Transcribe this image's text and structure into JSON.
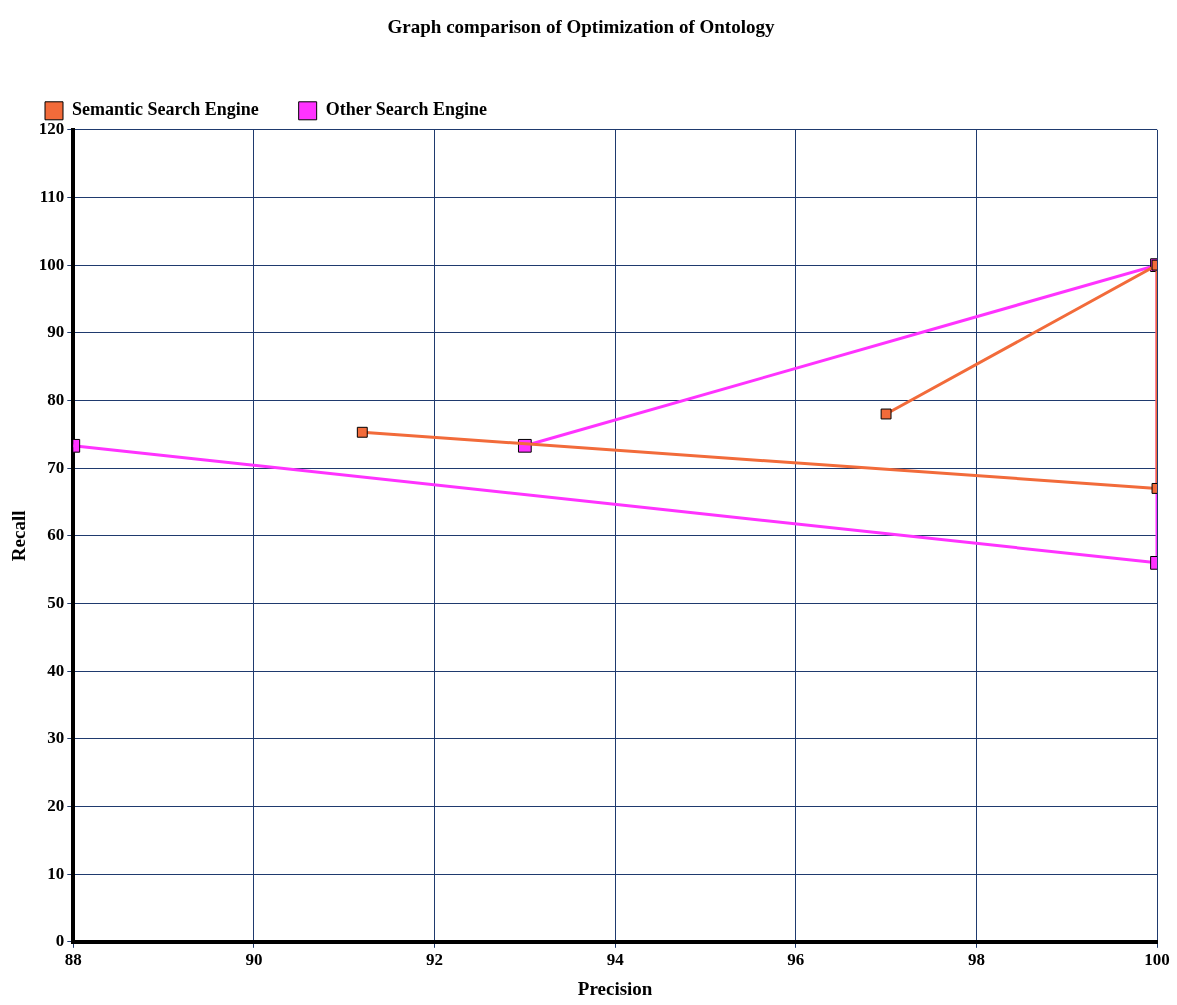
{
  "chart_data": {
    "type": "line",
    "title": "Graph comparison of Optimization of Ontology",
    "xlabel": "Precision",
    "ylabel": "Recall",
    "xlim": [
      88,
      100
    ],
    "xticks": [
      88,
      90,
      92,
      94,
      96,
      98,
      100
    ],
    "ylim": [
      0,
      120
    ],
    "yticks": [
      0,
      10,
      20,
      30,
      40,
      50,
      60,
      70,
      80,
      90,
      100,
      110,
      120
    ],
    "grid": true,
    "legend": "top left",
    "marker": "square",
    "line_style": "solid",
    "series": [
      {
        "name": "Semantic Search Engine",
        "color": "#f26b3a",
        "x": [
          91.2,
          100,
          100,
          97
        ],
        "values": [
          75.3,
          67,
          100,
          78
        ]
      },
      {
        "name": "Other Search Engine",
        "color": "#ff33ff",
        "x": [
          88,
          100,
          100,
          93
        ],
        "values": [
          73.3,
          56,
          100,
          73.3
        ]
      }
    ]
  }
}
